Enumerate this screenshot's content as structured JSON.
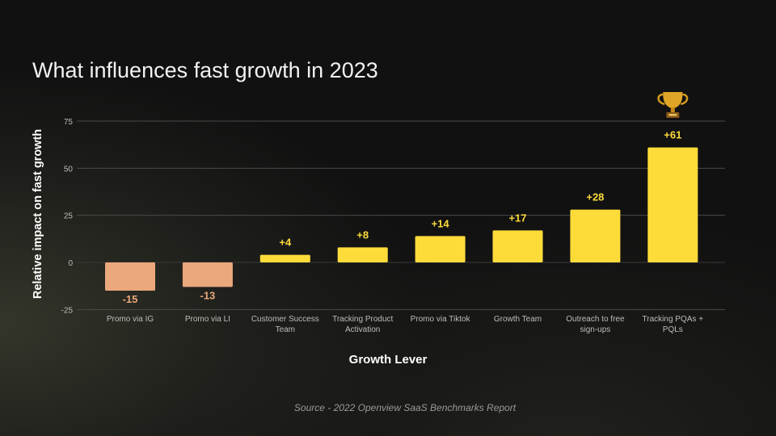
{
  "chart_data": {
    "type": "bar",
    "title": "What influences fast growth in 2023",
    "xlabel": "Growth Lever",
    "ylabel": "Relative impact on fast growth",
    "ylim": [
      -25,
      75
    ],
    "yticks": [
      75,
      50,
      25,
      0,
      -25
    ],
    "grid": true,
    "categories": [
      "Promo via IG",
      "Promo via LI",
      "Customer Success Team",
      "Tracking Product Activation",
      "Promo via Tiktok",
      "Growth Team",
      "Outreach to free sign-ups",
      "Tracking PQAs + PQLs"
    ],
    "category_lines": [
      [
        "Promo via IG"
      ],
      [
        "Promo via LI"
      ],
      [
        "Customer Success",
        "Team"
      ],
      [
        "Tracking Product",
        "Activation"
      ],
      [
        "Promo via Tiktok"
      ],
      [
        "Growth Team"
      ],
      [
        "Outreach to free",
        "sign-ups"
      ],
      [
        "Tracking PQAs +",
        "PQLs"
      ]
    ],
    "values": [
      -15,
      -13,
      4,
      8,
      14,
      17,
      28,
      61
    ],
    "data_labels": [
      "-15",
      "-13",
      "+4",
      "+8",
      "+14",
      "+17",
      "+28",
      "+61"
    ],
    "colors": {
      "positive": "#fddc3a",
      "negative": "#eba87c",
      "positive_label": "#fddc3a",
      "negative_label": "#eba87c"
    },
    "annotation_icon": "trophy-icon",
    "annotation_category": "Tracking PQAs + PQLs"
  },
  "source": "Source - 2022 Openview SaaS Benchmarks Report"
}
